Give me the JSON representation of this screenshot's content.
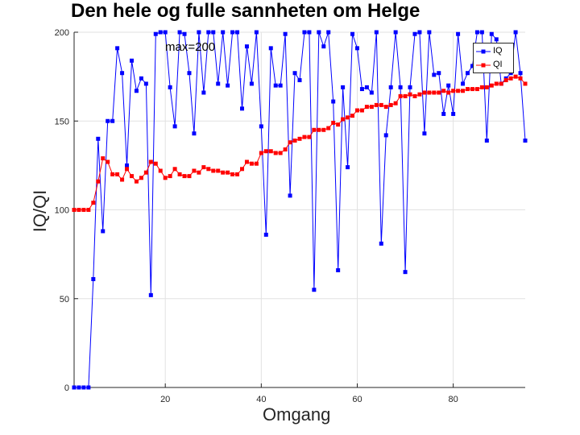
{
  "chart_data": {
    "type": "line",
    "title": "Den hele og fulle sannheten om Helge",
    "xlabel": "Omgang",
    "ylabel": "IQ/QI",
    "xlim": [
      1,
      95
    ],
    "ylim": [
      0,
      200
    ],
    "xticks": [
      20,
      40,
      60,
      80
    ],
    "yticks": [
      0,
      50,
      100,
      150,
      200
    ],
    "grid": true,
    "legend_position": "top-right",
    "annotation": "max=200",
    "x": [
      1,
      2,
      3,
      4,
      5,
      6,
      7,
      8,
      9,
      10,
      11,
      12,
      13,
      14,
      15,
      16,
      17,
      18,
      19,
      20,
      21,
      22,
      23,
      24,
      25,
      26,
      27,
      28,
      29,
      30,
      31,
      32,
      33,
      34,
      35,
      36,
      37,
      38,
      39,
      40,
      41,
      42,
      43,
      44,
      45,
      46,
      47,
      48,
      49,
      50,
      51,
      52,
      53,
      54,
      55,
      56,
      57,
      58,
      59,
      60,
      61,
      62,
      63,
      64,
      65,
      66,
      67,
      68,
      69,
      70,
      71,
      72,
      73,
      74,
      75,
      76,
      77,
      78,
      79,
      80,
      81,
      82,
      83,
      84,
      85,
      86,
      87,
      88,
      89,
      90,
      91,
      92,
      93,
      94,
      95
    ],
    "series": [
      {
        "name": "IQ",
        "color": "#0000ff",
        "marker": "square",
        "values": [
          0,
          0,
          0,
          0,
          61,
          140,
          88,
          150,
          150,
          191,
          177,
          125,
          184,
          167,
          174,
          171,
          52,
          199,
          200,
          200,
          169,
          147,
          200,
          199,
          177,
          143,
          200,
          166,
          200,
          200,
          171,
          200,
          170,
          200,
          200,
          157,
          192,
          171,
          200,
          147,
          86,
          191,
          170,
          170,
          199,
          108,
          177,
          173,
          200,
          200,
          55,
          200,
          192,
          200,
          161,
          66,
          169,
          124,
          199,
          191,
          168,
          169,
          166,
          200,
          81,
          142,
          169,
          200,
          169,
          65,
          169,
          199,
          200,
          143,
          200,
          176,
          177,
          154,
          170,
          154,
          199,
          171,
          177,
          181,
          200,
          200,
          139,
          199,
          196,
          171,
          174,
          177,
          200,
          177,
          139
        ]
      },
      {
        "name": "QI",
        "color": "#ff0000",
        "marker": "square",
        "values": [
          100,
          100,
          100,
          100,
          104,
          116,
          129,
          127,
          120,
          120,
          117,
          123,
          119,
          116,
          118,
          121,
          127,
          126,
          122,
          118,
          119,
          123,
          120,
          119,
          119,
          122,
          121,
          124,
          123,
          122,
          122,
          121,
          121,
          120,
          120,
          123,
          127,
          126,
          126,
          132,
          133,
          133,
          132,
          132,
          134,
          138,
          139,
          140,
          141,
          141,
          145,
          145,
          145,
          146,
          149,
          148,
          151,
          152,
          153,
          156,
          156,
          158,
          158,
          159,
          159,
          158,
          159,
          160,
          164,
          164,
          165,
          164,
          165,
          166,
          166,
          166,
          166,
          167,
          166,
          167,
          167,
          167,
          168,
          168,
          168,
          169,
          169,
          170,
          171,
          171,
          173,
          174,
          175,
          174,
          171
        ]
      }
    ]
  }
}
